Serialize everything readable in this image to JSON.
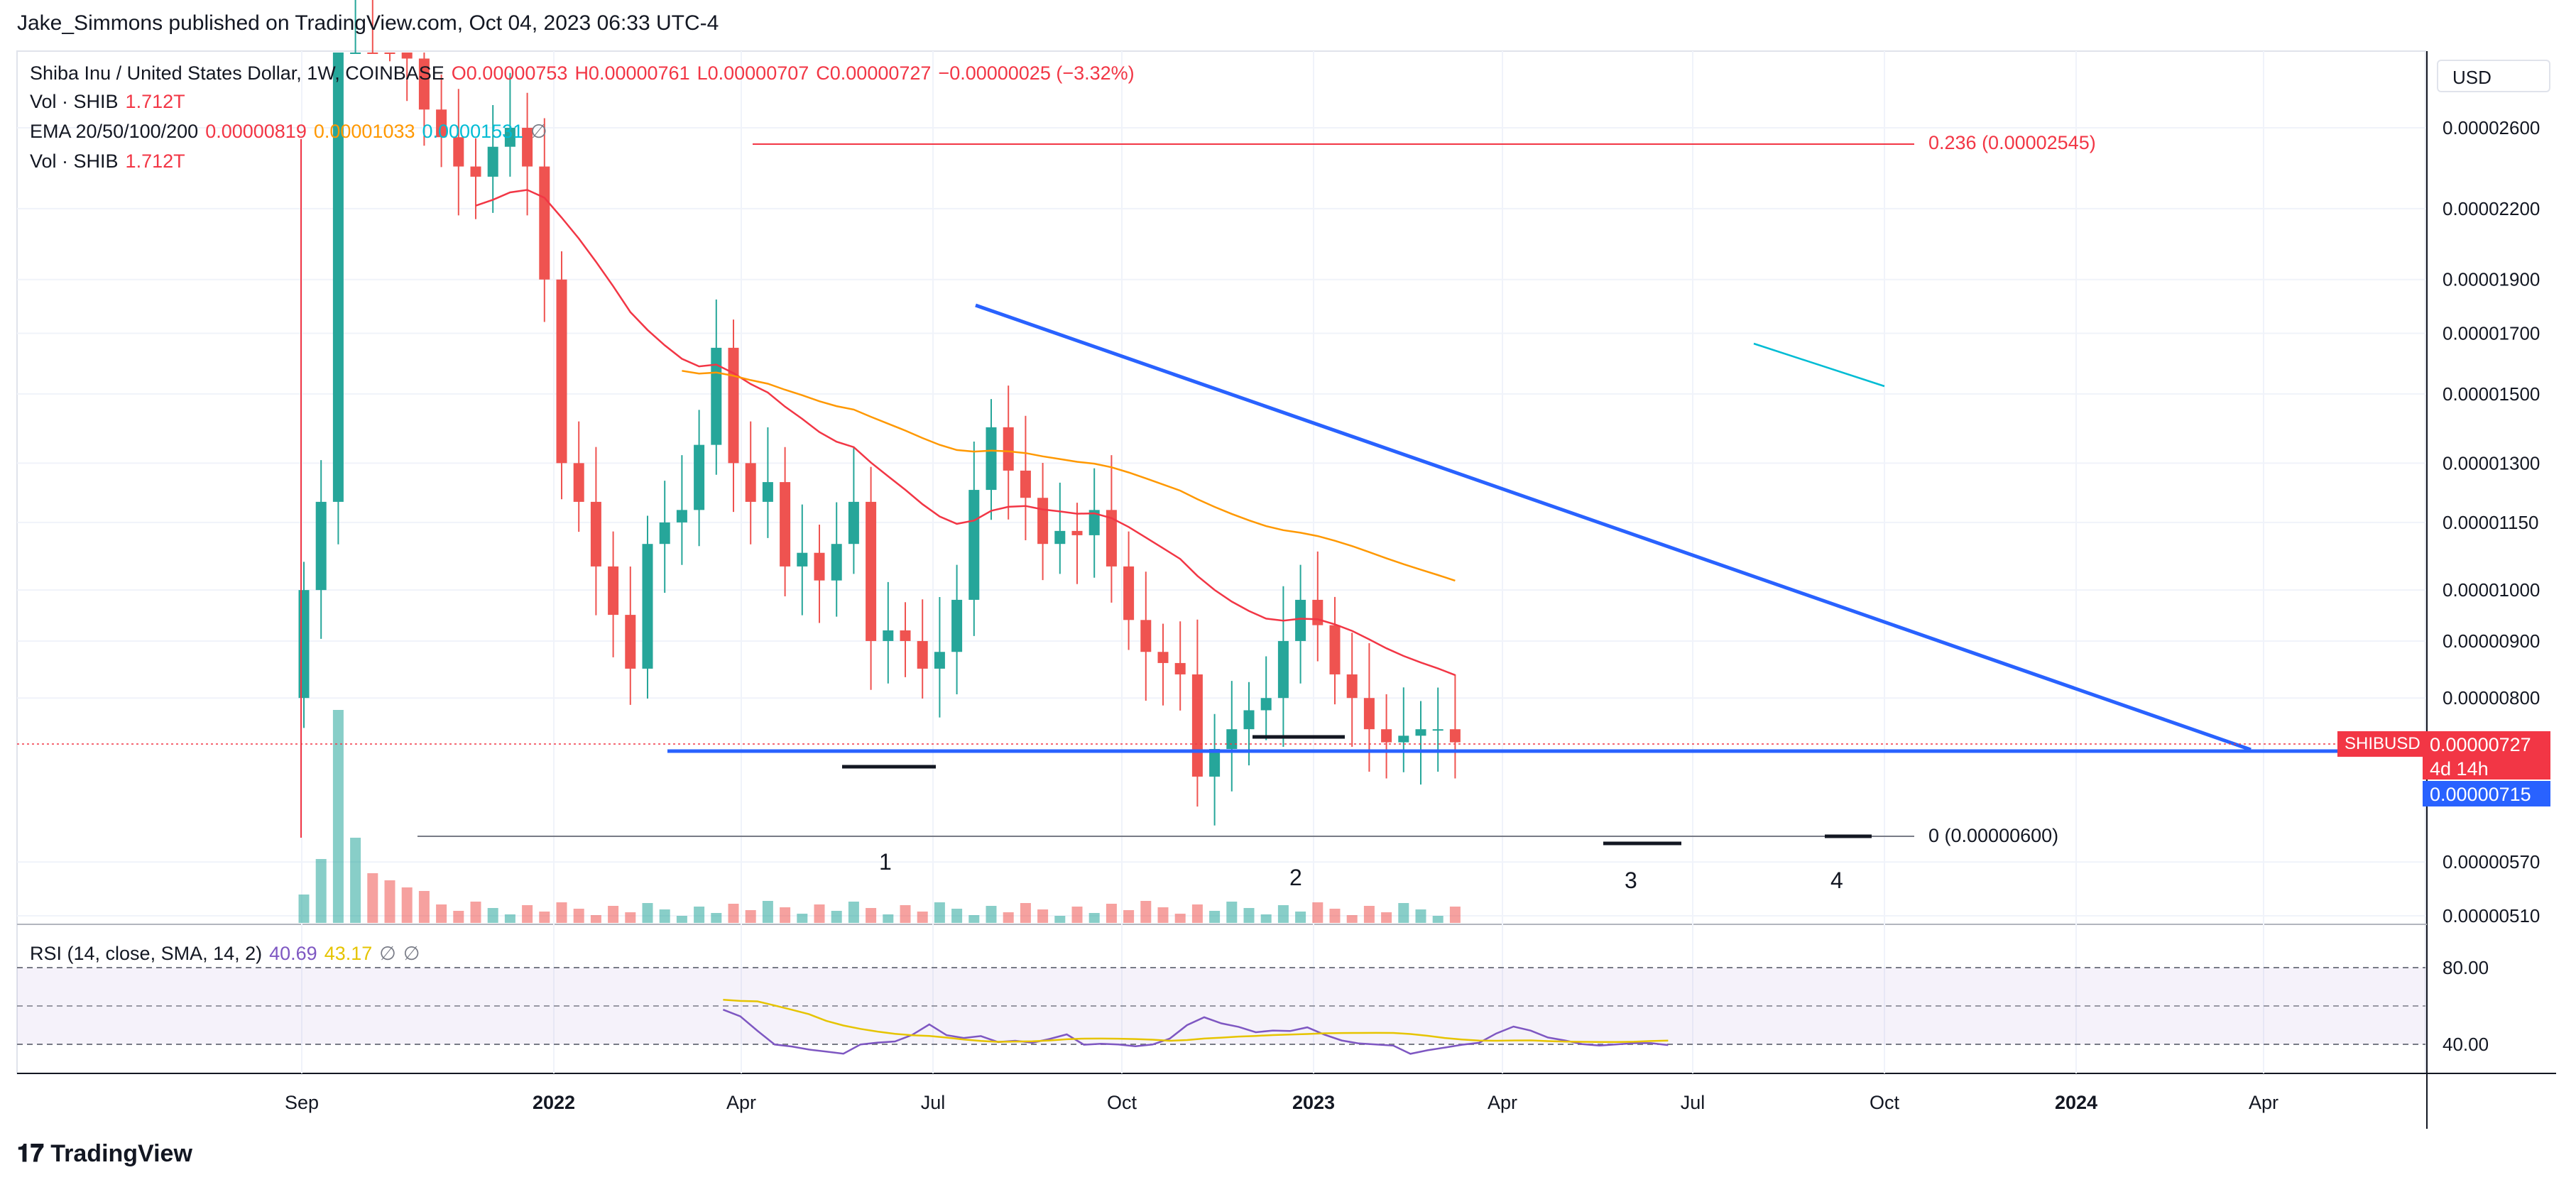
{
  "header": {
    "publisher": "Jake_Simmons published on TradingView.com, Oct 04, 2023 06:33 UTC-4"
  },
  "legend": {
    "symbol": "Shiba Inu / United States Dollar, 1W, COINBASE",
    "open": "O0.00000753",
    "high": "H0.00000761",
    "low": "L0.00000707",
    "close": "C0.00000727",
    "change": "−0.00000025 (−3.32%)",
    "vol1_label": "Vol · SHIB",
    "vol1_value": "1.712T",
    "ema_label": "EMA 20/50/100/200",
    "ema20": "0.00000819",
    "ema50": "0.00001033",
    "ema100": "0.00001531",
    "vol2_label": "Vol · SHIB",
    "vol2_value": "1.712T",
    "rsi_label": "RSI (14, close, SMA, 14, 2)",
    "rsi_value": "40.69",
    "rsi_sma": "43.17"
  },
  "currency": "USD",
  "badges": {
    "ticker": "SHIBUSD",
    "price": "0.00000727",
    "countdown": "4d 14h",
    "line_price": "0.00000715"
  },
  "fib": {
    "upper": "0.236 (0.00002545)",
    "lower": "0 (0.00000600)"
  },
  "wave_labels": [
    "1",
    "2",
    "3",
    "4"
  ],
  "colors": {
    "up": "#26a69a",
    "down": "#ef5350",
    "trendline": "#2962ff",
    "ema20": "#f23645",
    "ema50": "#ff9800",
    "ema100": "#00bcd4",
    "rsi": "#7e57c2",
    "rsi_sma": "#e6c400"
  },
  "footer": {
    "logo": "TradingView"
  },
  "chart_data": {
    "type": "line",
    "title": "Shiba Inu / United States Dollar, 1W, COINBASE",
    "y_scale": "log",
    "price_ticks": [
      "0.00002600",
      "0.00002200",
      "0.00001900",
      "0.00001700",
      "0.00001500",
      "0.00001300",
      "0.00001150",
      "0.00001000",
      "0.00000900",
      "0.00000800",
      "0.00000570",
      "0.00000510"
    ],
    "rsi_ticks": [
      "80.00",
      "40.00"
    ],
    "x_ticks": [
      "Sep",
      "2022",
      "Apr",
      "Jul",
      "Oct",
      "2023",
      "Apr",
      "Jul",
      "Oct",
      "2024",
      "Apr"
    ],
    "closes": [
      1e-05,
      1.2e-05,
      4e-05,
      4.6e-05,
      4e-05,
      3.3e-05,
      3e-05,
      2.7e-05,
      2.55e-05,
      2.4e-05,
      2.35e-05,
      2.5e-05,
      2.6e-05,
      2.4e-05,
      1.9e-05,
      1.3e-05,
      1.2e-05,
      1.05e-05,
      9.5e-06,
      8.5e-06,
      1.1e-05,
      1.15e-05,
      1.18e-05,
      1.35e-05,
      1.65e-05,
      1.3e-05,
      1.2e-05,
      1.25e-05,
      1.05e-05,
      1.08e-05,
      1.02e-05,
      1.1e-05,
      1.2e-05,
      9e-06,
      9.2e-06,
      9e-06,
      8.5e-06,
      8.8e-06,
      9.8e-06,
      1.23e-05,
      1.4e-05,
      1.28e-05,
      1.21e-05,
      1.1e-05,
      1.13e-05,
      1.12e-05,
      1.18e-05,
      1.05e-05,
      9.4e-06,
      8.8e-06,
      8.6e-06,
      8.4e-06,
      6.8e-06,
      7.2e-06,
      7.5e-06,
      7.8e-06,
      8e-06,
      9e-06,
      9.8e-06,
      9.3e-06,
      8.4e-06,
      8e-06,
      7.5e-06,
      7.3e-06,
      7.4e-06,
      7.5e-06,
      7.5e-06,
      7.3e-06
    ]
  }
}
